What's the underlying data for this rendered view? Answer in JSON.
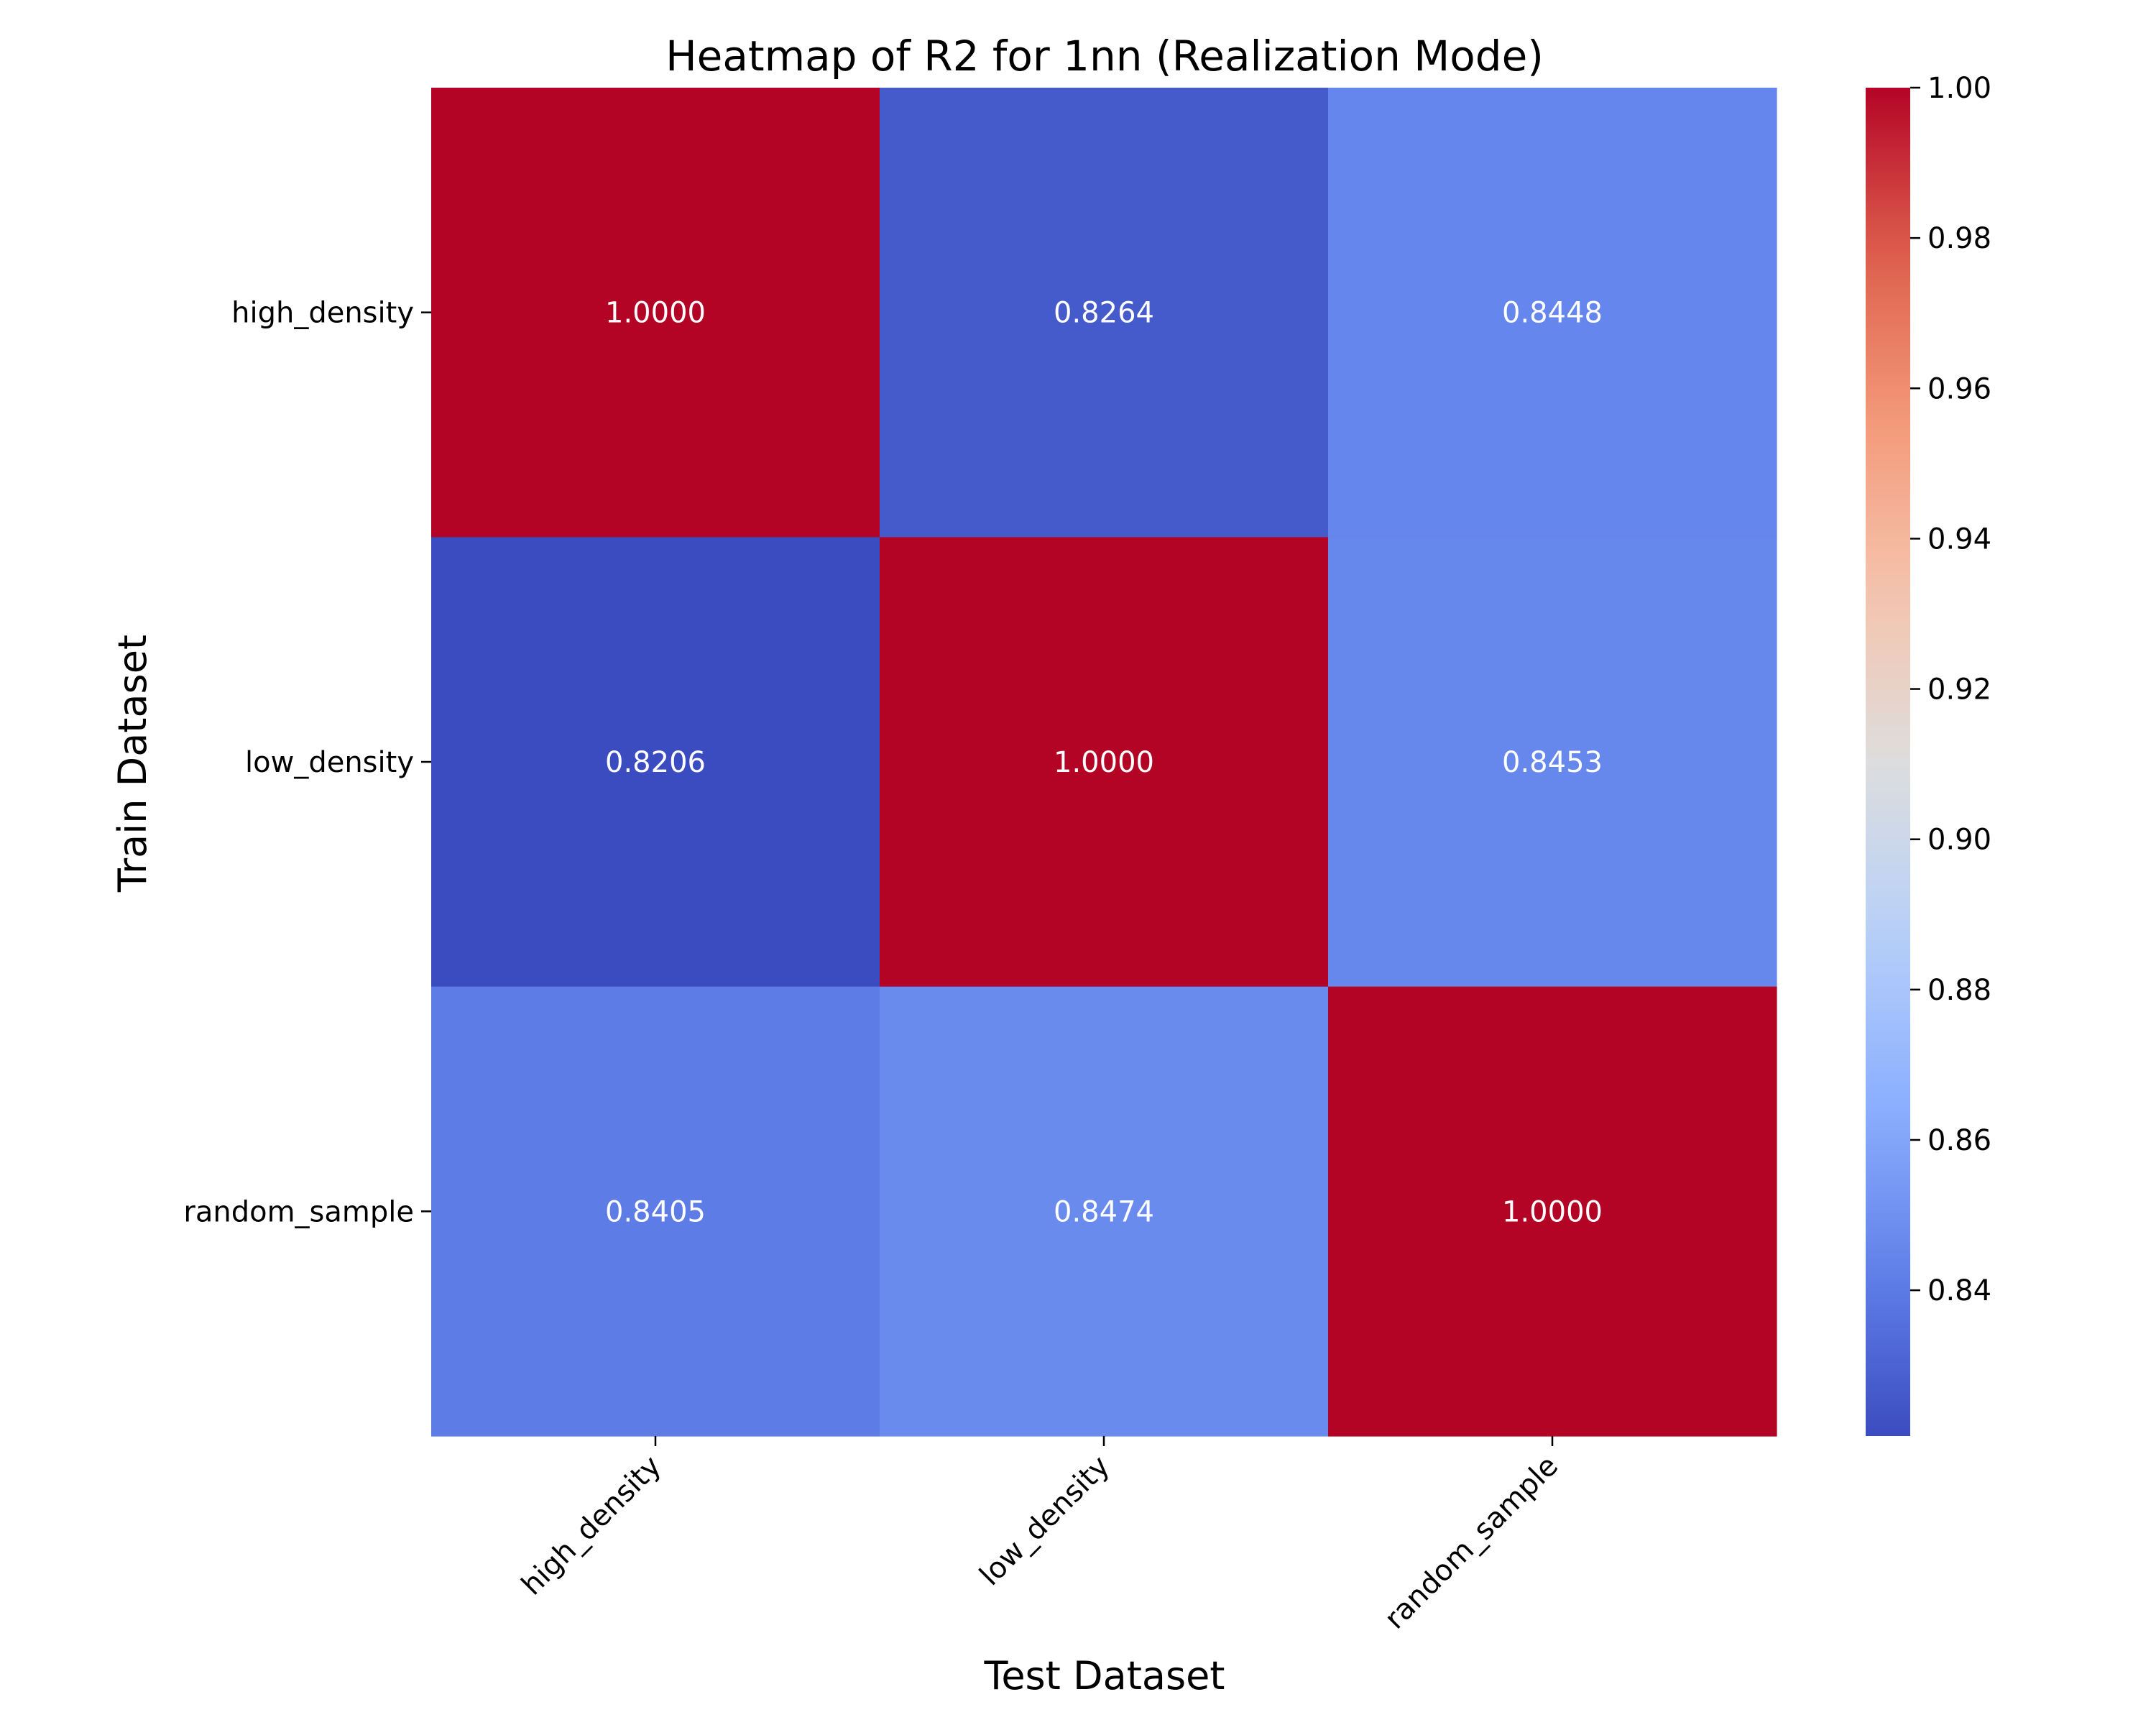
{
  "chart_data": {
    "type": "heatmap",
    "title": "Heatmap of R2 for 1nn (Realization Mode)",
    "xlabel": "Test Dataset",
    "ylabel": "Train Dataset",
    "x_categories": [
      "high_density",
      "low_density",
      "random_sample"
    ],
    "y_categories": [
      "high_density",
      "low_density",
      "random_sample"
    ],
    "values": [
      [
        1.0,
        0.8264,
        0.8448
      ],
      [
        0.8206,
        1.0,
        0.8453
      ],
      [
        0.8405,
        0.8474,
        1.0
      ]
    ],
    "cell_labels": [
      [
        "1.0000",
        "0.8264",
        "0.8448"
      ],
      [
        "0.8206",
        "1.0000",
        "0.8453"
      ],
      [
        "0.8405",
        "0.8474",
        "1.0000"
      ]
    ],
    "colormap": "coolwarm",
    "colorbar": {
      "range": [
        0.8206,
        1.0
      ],
      "ticks": [
        0.84,
        0.86,
        0.88,
        0.9,
        0.92,
        0.94,
        0.96,
        0.98,
        1.0
      ],
      "tick_labels": [
        "0.84",
        "0.86",
        "0.88",
        "0.90",
        "0.92",
        "0.94",
        "0.96",
        "0.98",
        "1.00"
      ],
      "position": "right"
    }
  }
}
